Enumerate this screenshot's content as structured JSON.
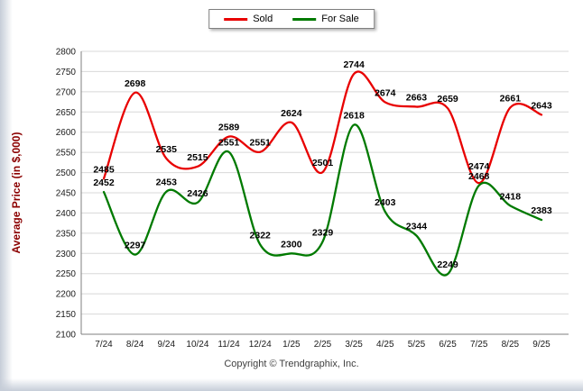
{
  "footer": {
    "copyright": "Copyright © Trendgraphix, Inc."
  },
  "chart_data": {
    "type": "line",
    "title": "",
    "xlabel": "",
    "ylabel": "Average Price (in $,000)",
    "ylim": [
      2100,
      2800
    ],
    "ytick_step": 50,
    "grid": "horizontal",
    "legend_position": "top",
    "smooth": true,
    "categories": [
      "7/24",
      "8/24",
      "9/24",
      "10/24",
      "11/24",
      "12/24",
      "1/25",
      "2/25",
      "3/25",
      "4/25",
      "5/25",
      "6/25",
      "7/25",
      "8/25",
      "9/25"
    ],
    "series": [
      {
        "name": "Sold",
        "color": "#e80000",
        "values": [
          2485,
          2698,
          2535,
          2515,
          2589,
          2551,
          2624,
          2501,
          2744,
          2674,
          2663,
          2659,
          2474,
          2661,
          2643
        ]
      },
      {
        "name": "For Sale",
        "color": "#007a00",
        "values": [
          2452,
          2297,
          2453,
          2426,
          2551,
          2322,
          2300,
          2329,
          2618,
          2403,
          2344,
          2249,
          2468,
          2418,
          2383
        ]
      }
    ]
  }
}
